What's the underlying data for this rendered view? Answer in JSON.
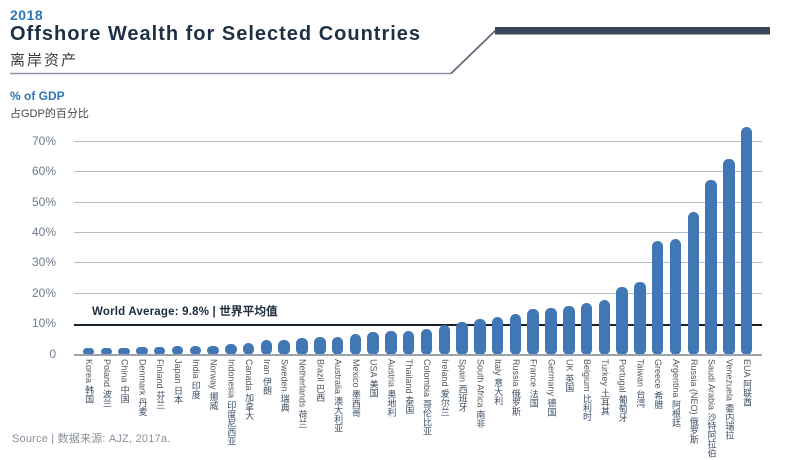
{
  "header": {
    "year": "2018",
    "title": "Offshore Wealth for Selected Countries",
    "title_cn": "离岸资产"
  },
  "axis": {
    "unit_en": "% of GDP",
    "unit_cn": "占GDP的百分比",
    "y_ticks": [
      "70%",
      "60%",
      "50%",
      "40%",
      "30%",
      "20%",
      "10%",
      "0"
    ],
    "y_tick_values": [
      70,
      60,
      50,
      40,
      30,
      20,
      10,
      0
    ]
  },
  "world_average": {
    "label": "World Average: 9.8% | 世界平均值",
    "value": 9.8
  },
  "source": {
    "label": "Source | 数据来源: AJZ, 2017a."
  },
  "colors": {
    "bar": "#4277b5",
    "accent_blue": "#2e75b5",
    "title_navy": "#1d3044",
    "grid": "#b4bcc6",
    "average_line": "#16222e",
    "header_bar": "#3b4759"
  },
  "chart_data": {
    "type": "bar",
    "title": "Offshore Wealth for Selected Countries",
    "subtitle": "离岸资产",
    "ylabel": "% of GDP",
    "ylim": [
      0,
      78
    ],
    "grid": true,
    "annotation": "World Average: 9.8% | 世界平均值",
    "annotation_value": 9.8,
    "categories": [
      {
        "en": "Korea",
        "cn": "韩国"
      },
      {
        "en": "Poland",
        "cn": "波兰"
      },
      {
        "en": "China",
        "cn": "中国"
      },
      {
        "en": "Denmark",
        "cn": "丹麦"
      },
      {
        "en": "Finland",
        "cn": "芬兰"
      },
      {
        "en": "Japan",
        "cn": "日本"
      },
      {
        "en": "India",
        "cn": "印度"
      },
      {
        "en": "Norway",
        "cn": "挪威"
      },
      {
        "en": "Indonesia",
        "cn": "印度尼西亚"
      },
      {
        "en": "Canada",
        "cn": "加拿大"
      },
      {
        "en": "Iran",
        "cn": "伊朗"
      },
      {
        "en": "Sweden",
        "cn": "瑞典"
      },
      {
        "en": "Netherlands",
        "cn": "荷兰"
      },
      {
        "en": "Brazil",
        "cn": "巴西"
      },
      {
        "en": "Australia",
        "cn": "澳大利亚"
      },
      {
        "en": "Mexico",
        "cn": "墨西哥"
      },
      {
        "en": "USA",
        "cn": "美国"
      },
      {
        "en": "Austria",
        "cn": "奥地利"
      },
      {
        "en": "Thailand",
        "cn": "泰国"
      },
      {
        "en": "Colombia",
        "cn": "哥伦比亚"
      },
      {
        "en": "Ireland",
        "cn": "爱尔兰"
      },
      {
        "en": "Spain",
        "cn": "西班牙"
      },
      {
        "en": "South Africa",
        "cn": "南非"
      },
      {
        "en": "Italy",
        "cn": "意大利"
      },
      {
        "en": "Russia",
        "cn": "俄罗斯"
      },
      {
        "en": "France",
        "cn": "法国"
      },
      {
        "en": "Germany",
        "cn": "德国"
      },
      {
        "en": "UK",
        "cn": "英国"
      },
      {
        "en": "Belgium",
        "cn": "比利时"
      },
      {
        "en": "Turkey",
        "cn": "土耳其"
      },
      {
        "en": "Portugal",
        "cn": "葡萄牙"
      },
      {
        "en": "Taiwan",
        "cn": "台湾"
      },
      {
        "en": "Greece",
        "cn": "希腊"
      },
      {
        "en": "Argentina",
        "cn": "阿根廷"
      },
      {
        "en": "Russia (NEO)",
        "cn": "俄罗斯"
      },
      {
        "en": "Saudi Arabia",
        "cn": "沙特阿拉伯"
      },
      {
        "en": "Venezuela",
        "cn": "委内瑞拉"
      },
      {
        "en": "EUA",
        "cn": "阿联酋"
      }
    ],
    "values": [
      1,
      2,
      2,
      2.5,
      2.5,
      3,
      3,
      3,
      3.5,
      4,
      5,
      5,
      5.5,
      6,
      6,
      7,
      7.5,
      8,
      8,
      8.5,
      10,
      11,
      12,
      12.5,
      13.5,
      15,
      15.5,
      16,
      17,
      18,
      22.5,
      24,
      37.5,
      38,
      47,
      57.5,
      64.5,
      75
    ]
  }
}
